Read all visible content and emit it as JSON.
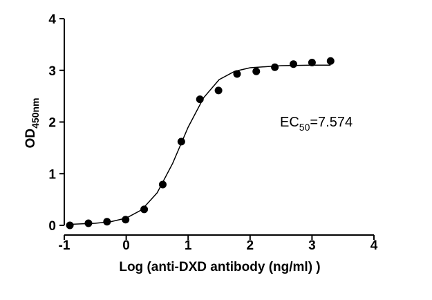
{
  "chart_data": {
    "type": "scatter",
    "xlabel": "Log (anti-DXD antibody (ng/ml) )",
    "ylabel": "OD",
    "ylabel_subscript": "450nm",
    "annotation": {
      "text": "EC",
      "subscript": "50",
      "suffix": "=7.574"
    },
    "xlim": [
      -1,
      4
    ],
    "xticks": [
      -1,
      0,
      1,
      2,
      3,
      4
    ],
    "ylim": [
      0,
      4
    ],
    "yticks": [
      0,
      1,
      2,
      3,
      4
    ],
    "grid": false,
    "series": [
      {
        "type": "line",
        "color": "#000000",
        "x": [
          -0.9,
          -0.5,
          -0.25,
          0,
          0.25,
          0.5,
          0.75,
          1,
          1.25,
          1.5,
          1.75,
          2,
          2.5,
          3,
          3.3
        ],
        "values": [
          0.02,
          0.04,
          0.07,
          0.14,
          0.3,
          0.63,
          1.2,
          1.9,
          2.47,
          2.82,
          2.98,
          3.05,
          3.09,
          3.1,
          3.1
        ]
      },
      {
        "type": "scatter",
        "color": "#000000",
        "x": [
          -0.91,
          -0.61,
          -0.31,
          -0.01,
          0.29,
          0.59,
          0.89,
          1.19,
          1.49,
          1.79,
          2.1,
          2.4,
          2.7,
          3.0,
          3.3
        ],
        "values": [
          0,
          0.04,
          0.07,
          0.11,
          0.31,
          0.79,
          1.62,
          2.44,
          2.61,
          2.93,
          2.98,
          3.06,
          3.12,
          3.15,
          3.18
        ]
      }
    ]
  }
}
